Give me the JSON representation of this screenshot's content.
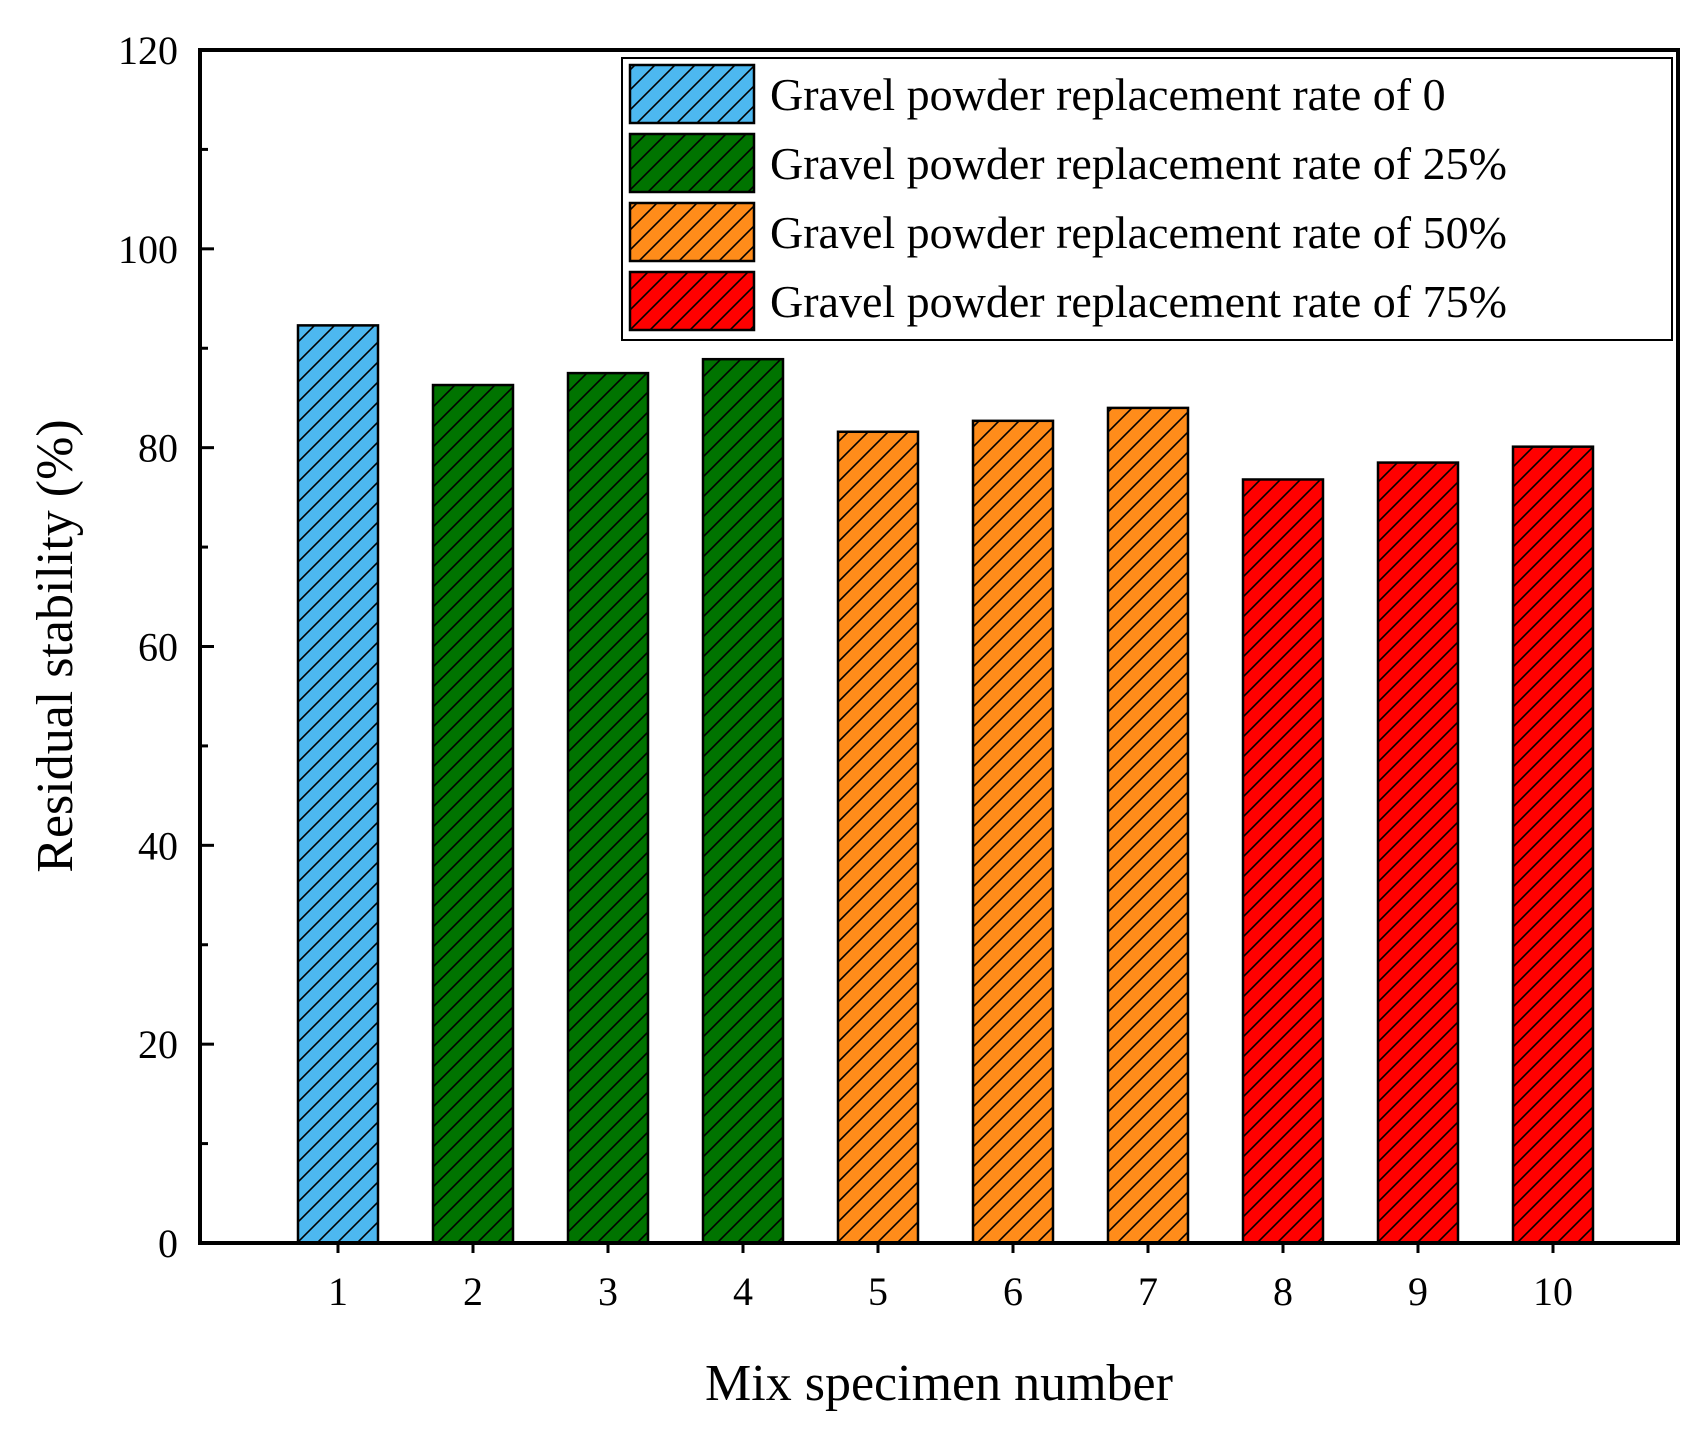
{
  "chart_data": {
    "type": "bar",
    "title": "",
    "xlabel": "Mix specimen number",
    "ylabel": "Residual stability (%)",
    "ylim": [
      0,
      120
    ],
    "yticks": [
      0,
      20,
      40,
      60,
      80,
      100,
      120
    ],
    "categories": [
      "1",
      "2",
      "3",
      "4",
      "5",
      "6",
      "7",
      "8",
      "9",
      "10"
    ],
    "values": [
      92.3,
      86.3,
      87.5,
      88.9,
      81.6,
      82.7,
      84.0,
      76.8,
      78.5,
      80.1
    ],
    "bar_series_index": [
      0,
      1,
      1,
      1,
      2,
      2,
      2,
      3,
      3,
      3
    ],
    "series": [
      {
        "name": "Gravel powder replacement rate of 0",
        "color": "#4db8f0"
      },
      {
        "name": "Gravel powder replacement rate of 25%",
        "color": "#007300"
      },
      {
        "name": "Gravel powder replacement rate of 50%",
        "color": "#ff8c1a"
      },
      {
        "name": "Gravel powder replacement rate of 75%",
        "color": "#ff0000"
      }
    ],
    "pattern": "diagonal-hatch",
    "legend_position": "top-right",
    "grid": false
  }
}
